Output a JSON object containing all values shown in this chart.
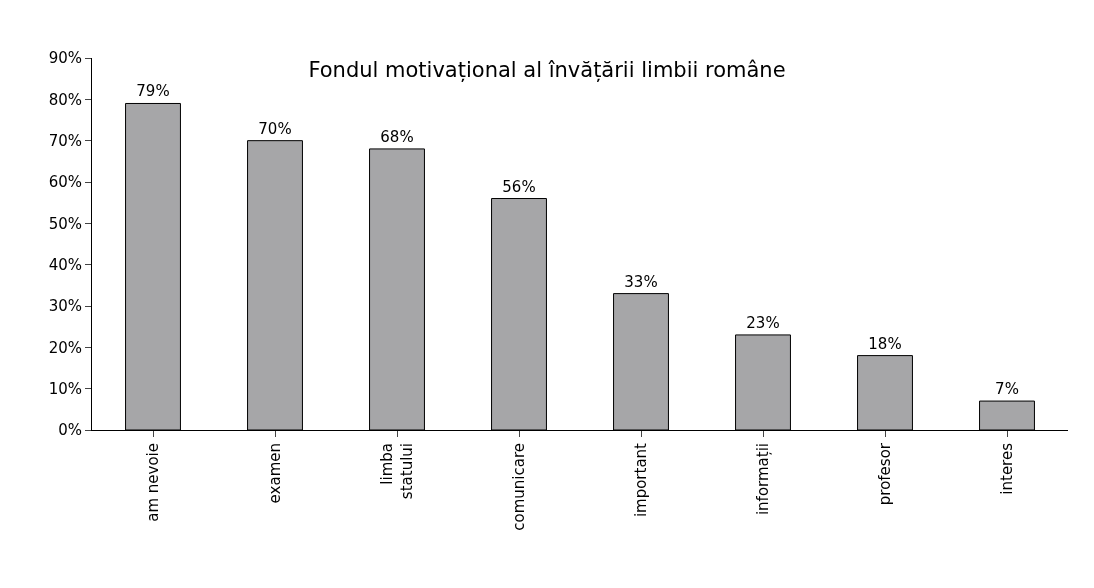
{
  "chart_data": {
    "type": "bar",
    "title": "Fondul motivațional al învățării limbii române",
    "categories": [
      "am nevoie",
      "examen",
      "limba\nstatului",
      "comunicare",
      "important",
      "informații",
      "profesor",
      "interes"
    ],
    "values": [
      79,
      70,
      68,
      56,
      33,
      23,
      18,
      7
    ],
    "value_labels": [
      "79%",
      "70%",
      "68%",
      "56%",
      "33%",
      "23%",
      "18%",
      "7%"
    ],
    "color": "#a6a6a8",
    "ylim": [
      0,
      90
    ],
    "yticks": [
      {
        "value": 0,
        "label": "0%"
      },
      {
        "value": 10,
        "label": "10%"
      },
      {
        "value": 20,
        "label": "20%"
      },
      {
        "value": 30,
        "label": "30%"
      },
      {
        "value": 40,
        "label": "40%"
      },
      {
        "value": 50,
        "label": "50%"
      },
      {
        "value": 60,
        "label": "60%"
      },
      {
        "value": 70,
        "label": "70%"
      },
      {
        "value": 80,
        "label": "80%"
      },
      {
        "value": 90,
        "label": "90%"
      }
    ],
    "grid": false,
    "legend": false
  }
}
